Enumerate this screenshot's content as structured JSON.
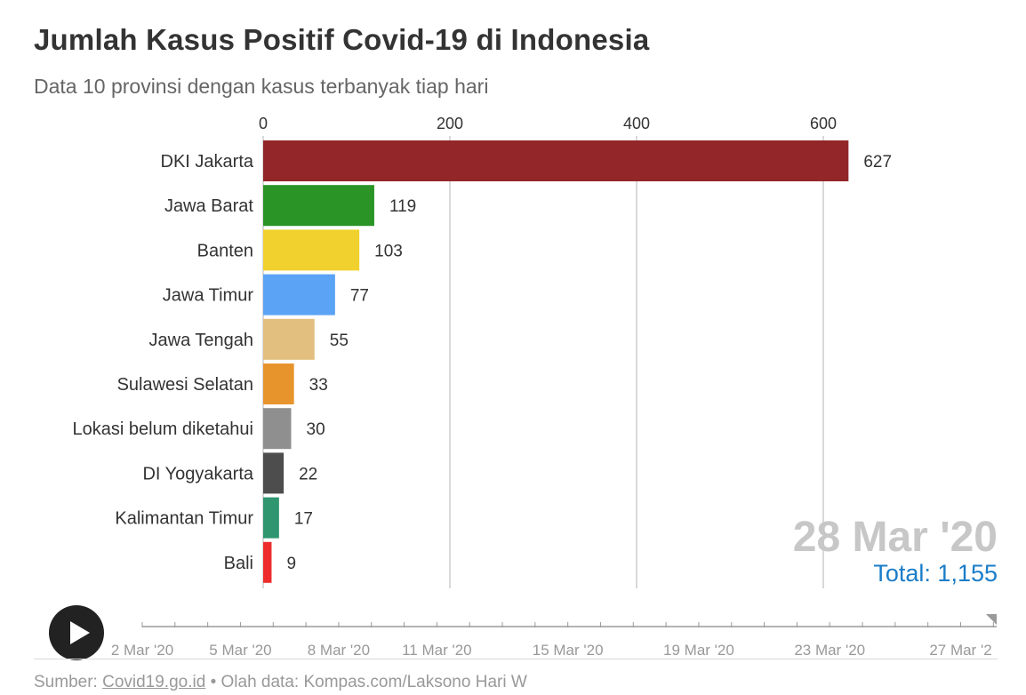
{
  "header": {
    "title": "Jumlah Kasus Positif Covid-19 di Indonesia",
    "subtitle": "Data 10 provinsi dengan kasus terbanyak tiap hari"
  },
  "chart_data": {
    "type": "bar",
    "orientation": "horizontal",
    "title": "Jumlah Kasus Positif Covid-19 di Indonesia",
    "subtitle": "Data 10 provinsi dengan kasus terbanyak tiap hari",
    "categories": [
      "DKI Jakarta",
      "Jawa Barat",
      "Banten",
      "Jawa Timur",
      "Jawa Tengah",
      "Sulawesi Selatan",
      "Lokasi belum diketahui",
      "DI Yogyakarta",
      "Kalimantan Timur",
      "Bali"
    ],
    "values": [
      627,
      119,
      103,
      77,
      55,
      33,
      30,
      22,
      17,
      9
    ],
    "colors": [
      "#922628",
      "#2a9426",
      "#f0d12d",
      "#5aa3f5",
      "#e2bf7f",
      "#e8942d",
      "#8f8f8f",
      "#4d4d4d",
      "#2f9670",
      "#ee2c2c"
    ],
    "x_ticks": [
      0,
      200,
      400,
      600
    ],
    "xlim": [
      0,
      650
    ],
    "x_axis_position": "top",
    "grid": true,
    "legend": "none",
    "date_label": "28 Mar '20",
    "total_label": "Total: 1,155"
  },
  "timeline": {
    "play_icon": "play-icon",
    "labels": [
      "2 Mar '20",
      "5 Mar '20",
      "8 Mar '20",
      "11 Mar '20",
      "15 Mar '20",
      "19 Mar '20",
      "23 Mar '20",
      "27 Mar '2"
    ],
    "current_date": "28 Mar '20"
  },
  "footer": {
    "prefix": "Sumber: ",
    "source_link": "Covid19.go.id",
    "suffix": " • Olah data: Kompas.com/Laksono Hari W"
  }
}
